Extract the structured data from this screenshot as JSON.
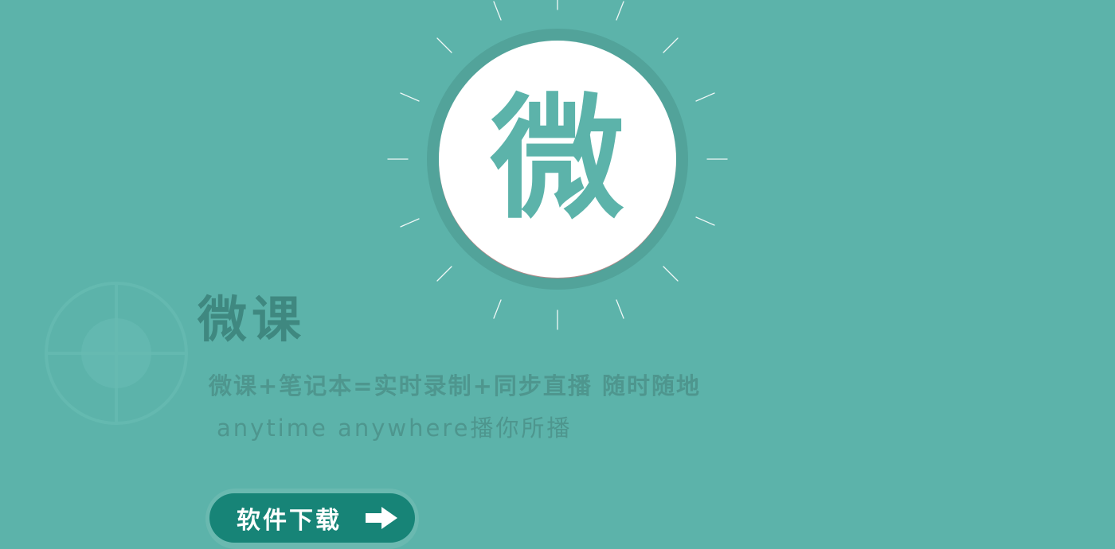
{
  "logo": {
    "glyph": "微",
    "icon": "sun-badge-icon"
  },
  "brand": {
    "title": "微课",
    "tagline": "微课+笔记本=实时录制+同步直播 随时随地",
    "subtagline": "anytime anywhere播你所播"
  },
  "download": {
    "label": "软件下载",
    "icon": "arrow-right-icon"
  },
  "colors": {
    "background": "#5cb3aa",
    "ring": "#52a39a",
    "button": "#178477",
    "title": "#3f8880"
  }
}
